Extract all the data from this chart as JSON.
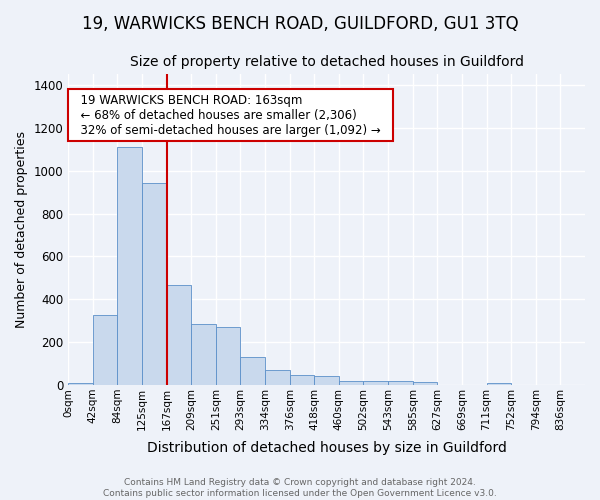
{
  "title": "19, WARWICKS BENCH ROAD, GUILDFORD, GU1 3TQ",
  "subtitle": "Size of property relative to detached houses in Guildford",
  "xlabel": "Distribution of detached houses by size in Guildford",
  "ylabel": "Number of detached properties",
  "footer1": "Contains HM Land Registry data © Crown copyright and database right 2024.",
  "footer2": "Contains public sector information licensed under the Open Government Licence v3.0.",
  "annotation_line1": "19 WARWICKS BENCH ROAD: 163sqm",
  "annotation_line2": "← 68% of detached houses are smaller (2,306)",
  "annotation_line3": "32% of semi-detached houses are larger (1,092) →",
  "bar_color": "#c9d9ed",
  "bar_edge_color": "#5b8fc9",
  "vline_color": "#cc0000",
  "vline_bin_index": 4,
  "categories": [
    "0sqm",
    "42sqm",
    "84sqm",
    "125sqm",
    "167sqm",
    "209sqm",
    "251sqm",
    "293sqm",
    "334sqm",
    "376sqm",
    "418sqm",
    "460sqm",
    "502sqm",
    "543sqm",
    "585sqm",
    "627sqm",
    "669sqm",
    "711sqm",
    "752sqm",
    "794sqm",
    "836sqm"
  ],
  "bar_heights": [
    10,
    325,
    1110,
    945,
    465,
    285,
    270,
    130,
    70,
    45,
    40,
    20,
    20,
    20,
    15,
    0,
    0,
    10,
    0,
    0,
    0
  ],
  "n_bins": 21,
  "ylim": [
    0,
    1450
  ],
  "yticks": [
    0,
    200,
    400,
    600,
    800,
    1000,
    1200,
    1400
  ],
  "background_color": "#eef2f9",
  "grid_color": "#ffffff",
  "annotation_box_color": "#ffffff",
  "annotation_box_edge_color": "#cc0000",
  "title_fontsize": 12,
  "subtitle_fontsize": 10,
  "ylabel_fontsize": 9,
  "xlabel_fontsize": 10
}
